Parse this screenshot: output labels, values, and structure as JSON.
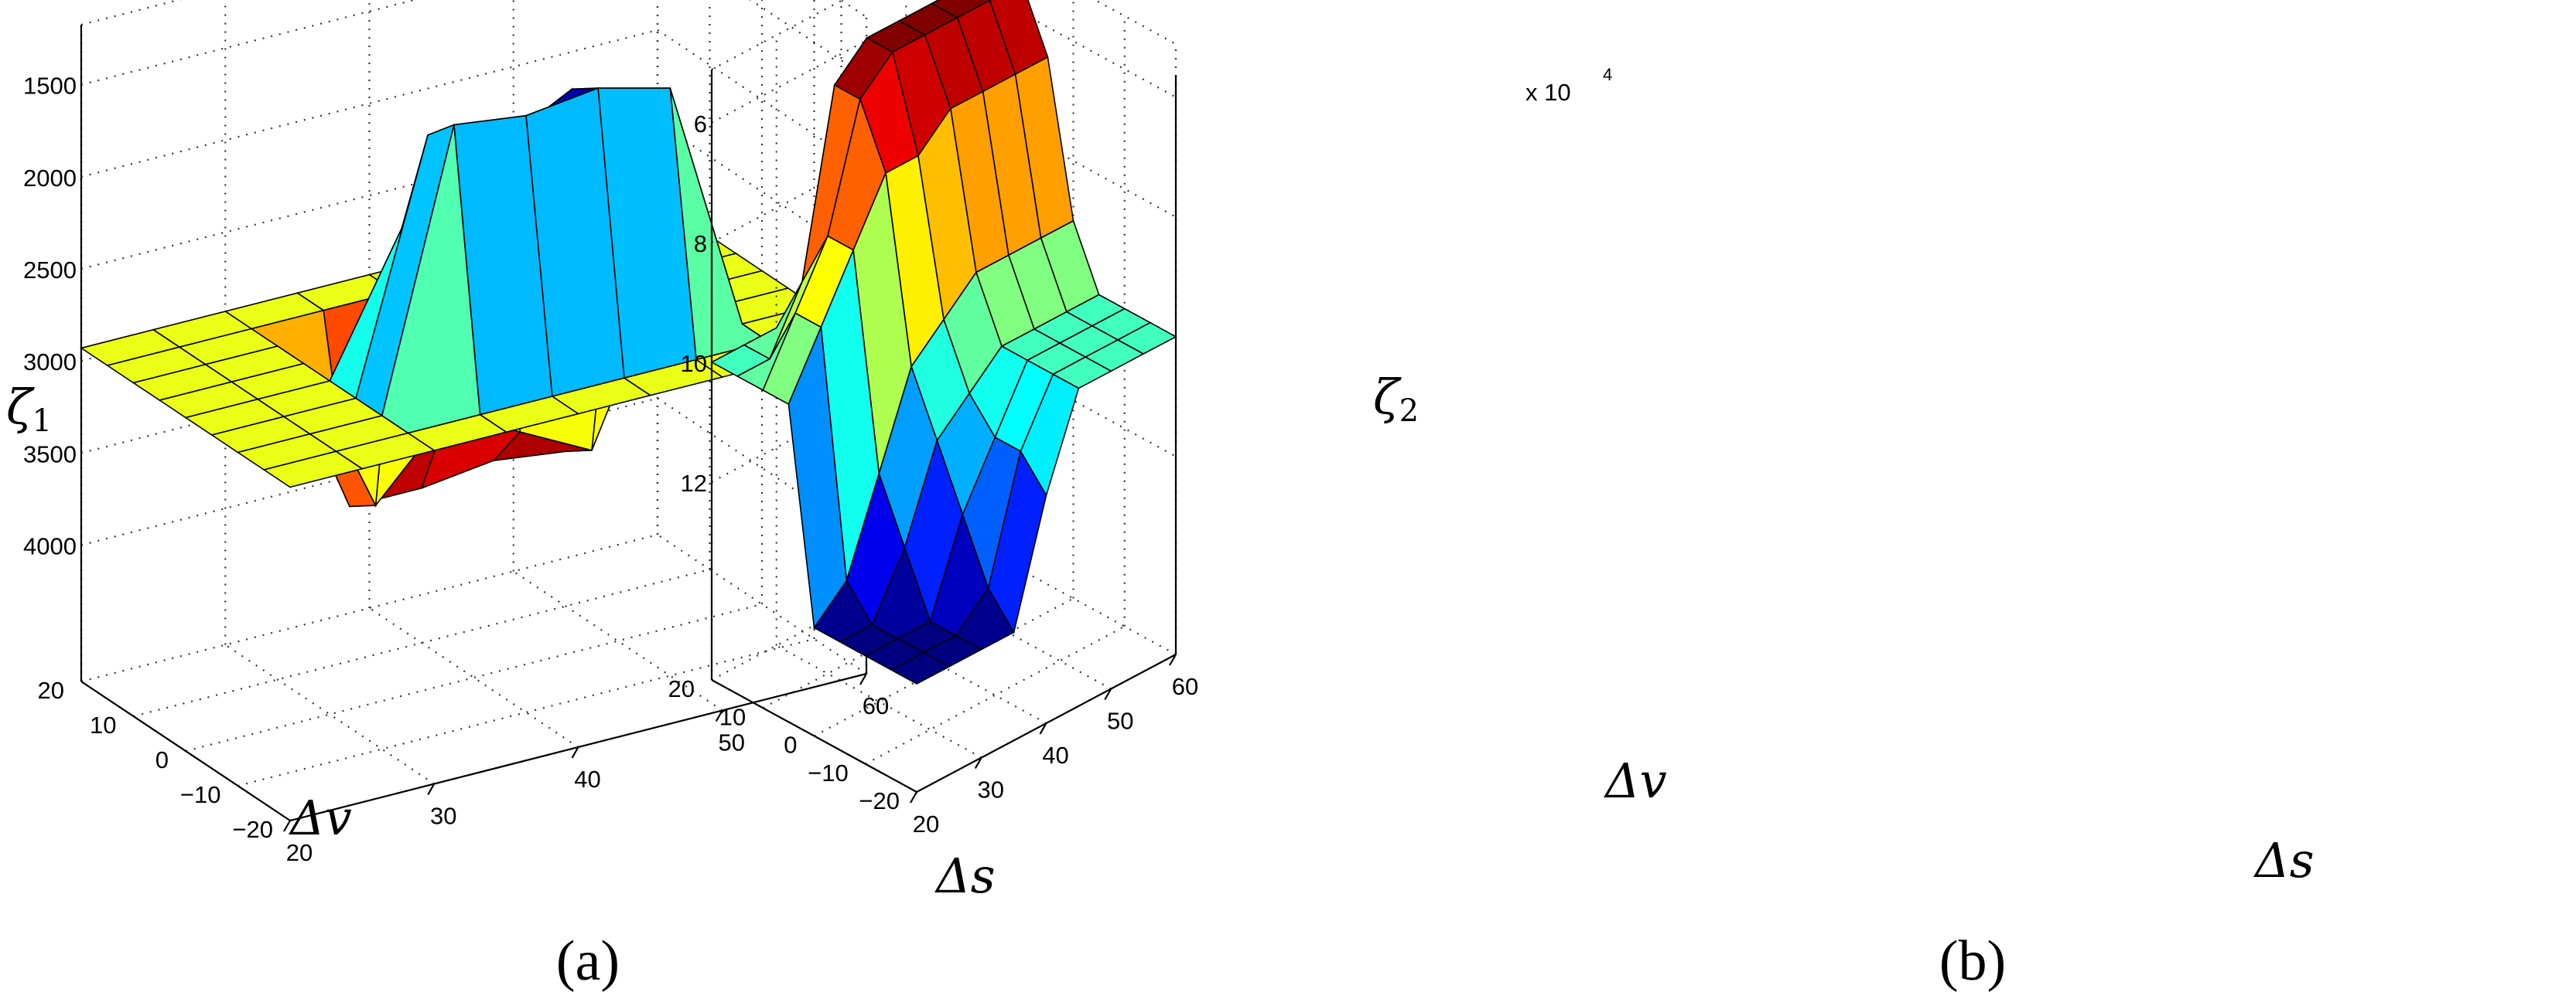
{
  "chart_data": [
    {
      "type": "surface",
      "caption": "(a)",
      "xlabel": "Δs",
      "ylabel": "Δv",
      "zlabel": "ζ1",
      "x": [
        20,
        25,
        30,
        35,
        40,
        45,
        50,
        55,
        60
      ],
      "y": [
        -20,
        -15,
        -10,
        -5,
        0,
        5,
        10,
        15,
        20
      ],
      "xticks": [
        "20",
        "30",
        "40",
        "50",
        "60"
      ],
      "yticks": [
        "-20",
        "-10",
        "0",
        "10",
        "20"
      ],
      "zticks": [
        "1500",
        "2000",
        "2500",
        "3000",
        "3500",
        "4000"
      ],
      "zlim": [
        1300,
        4300
      ],
      "z": [
        [
          2930,
          2930,
          2930,
          2930,
          2930,
          2930,
          2930,
          2930,
          2930
        ],
        [
          2930,
          2930,
          2930,
          2930,
          2930,
          2930,
          2930,
          2930,
          2930
        ],
        [
          2930,
          2930,
          2930,
          1450,
          1500,
          1450,
          1550,
          2930,
          2930
        ],
        [
          2930,
          2930,
          2930,
          1600,
          1750,
          1550,
          1700,
          2930,
          2930
        ],
        [
          2930,
          2930,
          2930,
          2200,
          2500,
          2150,
          2300,
          2930,
          2930
        ],
        [
          2930,
          2930,
          2930,
          3800,
          3400,
          3600,
          3800,
          2930,
          2930
        ],
        [
          2930,
          2930,
          2930,
          3900,
          3900,
          3850,
          3900,
          2930,
          2930
        ],
        [
          2930,
          2930,
          2930,
          2930,
          2930,
          2930,
          2930,
          2930,
          2930
        ],
        [
          2930,
          2930,
          2930,
          2930,
          2930,
          2930,
          2930,
          2930,
          2930
        ]
      ]
    },
    {
      "type": "surface",
      "caption": "(b)",
      "xlabel": "Δs",
      "ylabel": "Δv",
      "zlabel": "ζ2",
      "zscale": "x 10",
      "zexp": "4",
      "x": [
        20,
        25,
        30,
        35,
        40,
        45,
        50,
        55,
        60
      ],
      "y": [
        -20,
        -15,
        -10,
        -5,
        0,
        5,
        10,
        15,
        20
      ],
      "xticks": [
        "20",
        "30",
        "40",
        "50",
        "60"
      ],
      "yticks": [
        "-20",
        "-10",
        "0",
        "10",
        "20"
      ],
      "zticks": [
        "6",
        "8",
        "10",
        "12"
      ],
      "zlim": [
        13.5,
        5.5
      ],
      "z": [
        [
          13.5,
          13.5,
          13.5,
          13.5,
          11.5,
          10,
          10,
          10,
          10
        ],
        [
          13.5,
          13.5,
          13.5,
          13,
          11,
          10,
          10,
          10,
          10
        ],
        [
          13.5,
          13.5,
          13.5,
          12,
          11,
          10,
          10,
          10,
          10
        ],
        [
          13.5,
          13.5,
          12.5,
          11,
          10.5,
          10,
          10,
          10,
          10
        ],
        [
          13.5,
          13,
          11.5,
          10,
          9.5,
          9,
          9,
          9,
          9
        ],
        [
          10,
          9,
          8,
          7,
          7,
          6.5,
          6.5,
          6.5,
          6.5
        ],
        [
          10,
          9,
          8,
          6,
          5.5,
          5.5,
          5.5,
          5.5,
          5.5
        ],
        [
          10,
          10,
          9,
          6,
          5.5,
          5.5,
          5.5,
          5.5,
          5.5
        ],
        [
          10,
          10,
          10,
          10,
          10,
          10,
          10,
          10,
          10
        ]
      ]
    }
  ]
}
